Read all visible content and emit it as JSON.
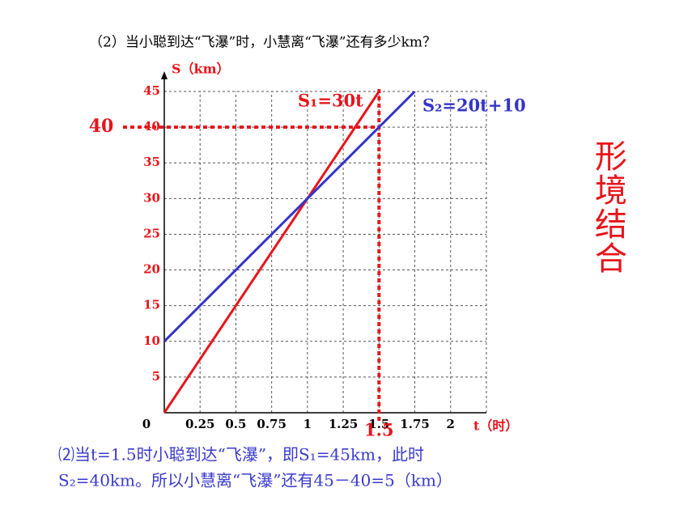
{
  "question": "（2）当小聪到达“飞瀑”时，小慧离“飞瀑”还有多少km？",
  "side_note": "形境结合",
  "explanation": [
    "⑵当t=1.5时小聪到达“飞瀑”，即S₁=45km，此时",
    "S₂=40km。所以小慧离“飞瀑”还有45－40=5（km）"
  ],
  "chart_data": {
    "type": "line",
    "x_label": "t（时）",
    "y_label": "S（km）",
    "xlim": [
      0,
      2.25
    ],
    "ylim": [
      0,
      45
    ],
    "xticks": [
      0,
      0.25,
      0.5,
      0.75,
      1,
      1.25,
      1.5,
      1.75,
      2
    ],
    "yticks": [
      5,
      10,
      15,
      20,
      25,
      30,
      35,
      40,
      45
    ],
    "grid": true,
    "series": [
      {
        "name": "S₁=30t",
        "color": "#e8141b",
        "x": [
          0,
          1.5
        ],
        "values": [
          0,
          45
        ]
      },
      {
        "name": "S₂=20t+10",
        "color": "#3434c8",
        "x": [
          0,
          1.75
        ],
        "values": [
          10,
          45
        ]
      }
    ],
    "guides": [
      {
        "axis": "y",
        "value": 40,
        "color": "#e8141b"
      },
      {
        "axis": "x",
        "value": 1.5,
        "color": "#e8141b"
      }
    ]
  }
}
